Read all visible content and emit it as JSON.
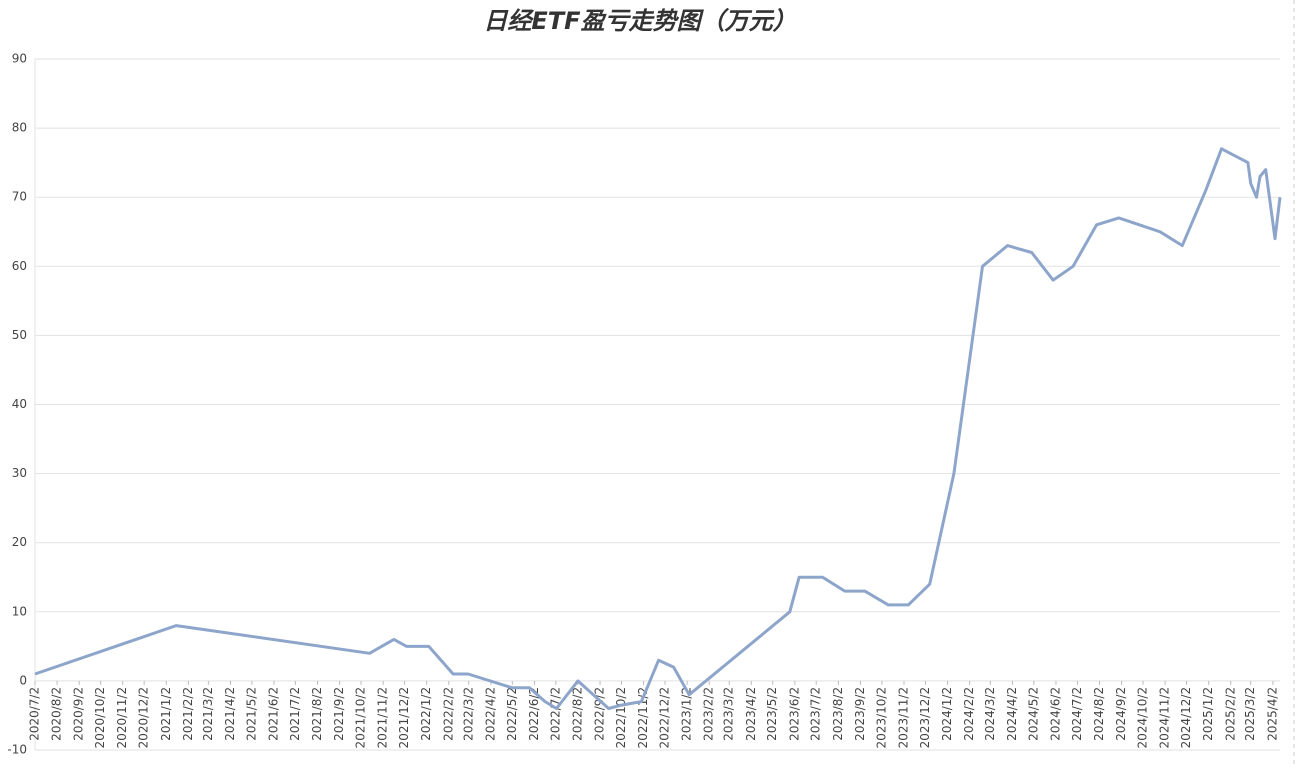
{
  "chart_data": {
    "type": "line",
    "title": "日经ETF盈亏走势图（万元）",
    "x": [
      "2020/7/2",
      "2021/1/16",
      "2021/10/14",
      "2021/11/17",
      "2021/12/5",
      "2022/1/5",
      "2022/2/8",
      "2022/3/1",
      "2022/5/2",
      "2022/5/26",
      "2022/6/17",
      "2022/7/3",
      "2022/8/2",
      "2022/9/14",
      "2022/10/2",
      "2022/10/30",
      "2022/11/23",
      "2022/12/14",
      "2023/1/5",
      "2023/5/26",
      "2023/6/8",
      "2023/7/11",
      "2023/8/11",
      "2023/9/8",
      "2023/10/11",
      "2023/11/8",
      "2023/12/8",
      "2024/1/11",
      "2024/2/20",
      "2024/3/26",
      "2024/4/29",
      "2024/5/29",
      "2024/6/26",
      "2024/7/29",
      "2024/8/29",
      "2024/10/26",
      "2024/11/26",
      "2024/12/29",
      "2025/1/20",
      "2025/2/26",
      "2025/3/2",
      "2025/3/10",
      "2025/3/15",
      "2025/3/23",
      "2025/4/5",
      "2025/4/12"
    ],
    "series": [
      {
        "name": "盈亏",
        "color": "#8ea5cb",
        "values": [
          1,
          8,
          4,
          6,
          5,
          5,
          1,
          1,
          -1,
          -1,
          -3,
          -4,
          0,
          -4,
          -3.5,
          -3,
          3,
          2,
          -2,
          10,
          15,
          15,
          13,
          13,
          11,
          11,
          14,
          30,
          60,
          63,
          62,
          58,
          60,
          66,
          67,
          65,
          63,
          71,
          77,
          75,
          72,
          70,
          73,
          74,
          64,
          70
        ]
      }
    ],
    "xlim": [
      "2020/7/2",
      "2025/4/12"
    ],
    "xticks": [
      "2020/7/2",
      "2020/8/2",
      "2020/9/2",
      "2020/10/2",
      "2020/11/2",
      "2020/12/2",
      "2021/1/2",
      "2021/2/2",
      "2021/3/2",
      "2021/4/2",
      "2021/5/2",
      "2021/6/2",
      "2021/7/2",
      "2021/8/2",
      "2021/9/2",
      "2021/10/2",
      "2021/11/2",
      "2021/12/2",
      "2022/1/2",
      "2022/2/2",
      "2022/3/2",
      "2022/4/2",
      "2022/5/2",
      "2022/6/2",
      "2022/7/2",
      "2022/8/2",
      "2022/9/2",
      "2022/10/2",
      "2022/11/2",
      "2022/12/2",
      "2023/1/2",
      "2023/2/2",
      "2023/3/2",
      "2023/4/2",
      "2023/5/2",
      "2023/6/2",
      "2023/7/2",
      "2023/8/2",
      "2023/9/2",
      "2023/10/2",
      "2023/11/2",
      "2023/12/2",
      "2024/1/2",
      "2024/2/2",
      "2024/3/2",
      "2024/4/2",
      "2024/5/2",
      "2024/6/2",
      "2024/7/2",
      "2024/8/2",
      "2024/9/2",
      "2024/10/2",
      "2024/11/2",
      "2024/12/2",
      "2025/1/2",
      "2025/2/2",
      "2025/3/2",
      "2025/4/2"
    ],
    "ylim": [
      -10,
      90
    ],
    "yticks": [
      -10,
      0,
      10,
      20,
      30,
      40,
      50,
      60,
      70,
      80,
      90
    ],
    "grid": true
  }
}
